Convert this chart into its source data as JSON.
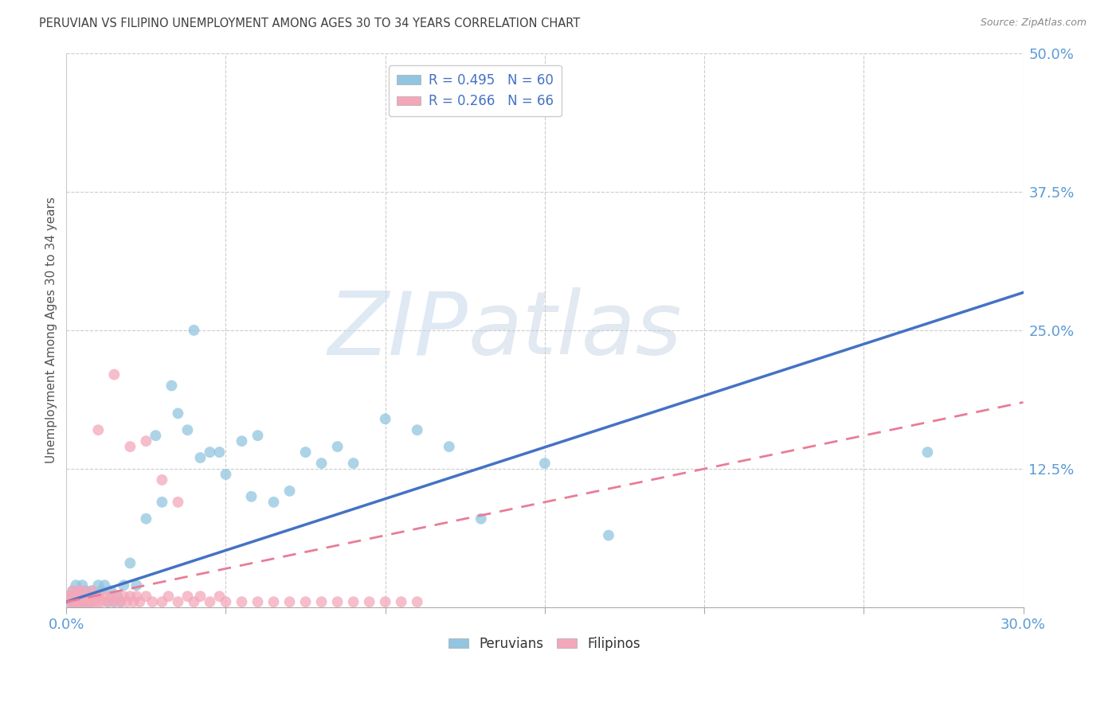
{
  "title": "PERUVIAN VS FILIPINO UNEMPLOYMENT AMONG AGES 30 TO 34 YEARS CORRELATION CHART",
  "source": "Source: ZipAtlas.com",
  "ylabel": "Unemployment Among Ages 30 to 34 years",
  "xlim": [
    0.0,
    0.3
  ],
  "ylim": [
    0.0,
    0.5
  ],
  "xticks": [
    0.0,
    0.05,
    0.1,
    0.15,
    0.2,
    0.25,
    0.3
  ],
  "xtick_labels": [
    "0.0%",
    "",
    "",
    "",
    "",
    "",
    "30.0%"
  ],
  "ytick_labels": [
    "",
    "12.5%",
    "25.0%",
    "37.5%",
    "50.0%"
  ],
  "yticks": [
    0.0,
    0.125,
    0.25,
    0.375,
    0.5
  ],
  "peruvian_color": "#92C5E0",
  "filipino_color": "#F4A7B9",
  "peruvian_line_color": "#4472C4",
  "filipino_line_color": "#E87D96",
  "peruvian_N": 60,
  "filipino_N": 66,
  "peruvian_R": 0.495,
  "filipino_R": 0.266,
  "legend_peruvian_label": "R = 0.495   N = 60",
  "legend_filipino_label": "R = 0.266   N = 66",
  "legend_peruvians": "Peruvians",
  "legend_filipinos": "Filipinos",
  "watermark_zip": "ZIP",
  "watermark_atlas": "atlas",
  "title_color": "#404040",
  "tick_label_color": "#5B9BD5",
  "legend_text_color": "#4472C4",
  "grid_color": "#CCCCCC",
  "peruvian_line_intercept": 0.005,
  "peruvian_line_slope": 0.93,
  "filipino_line_intercept": 0.005,
  "filipino_line_slope": 0.6,
  "peru_x": [
    0.001,
    0.001,
    0.002,
    0.002,
    0.002,
    0.003,
    0.003,
    0.003,
    0.004,
    0.004,
    0.005,
    0.005,
    0.005,
    0.006,
    0.006,
    0.007,
    0.007,
    0.008,
    0.008,
    0.009,
    0.01,
    0.01,
    0.011,
    0.012,
    0.013,
    0.014,
    0.015,
    0.016,
    0.017,
    0.018,
    0.02,
    0.022,
    0.025,
    0.028,
    0.03,
    0.033,
    0.035,
    0.038,
    0.04,
    0.042,
    0.045,
    0.048,
    0.05,
    0.055,
    0.058,
    0.06,
    0.065,
    0.07,
    0.075,
    0.08,
    0.085,
    0.09,
    0.1,
    0.11,
    0.12,
    0.13,
    0.15,
    0.17,
    0.27,
    0.135
  ],
  "peru_y": [
    0.01,
    0.005,
    0.015,
    0.005,
    0.01,
    0.01,
    0.005,
    0.02,
    0.01,
    0.005,
    0.02,
    0.01,
    0.005,
    0.015,
    0.005,
    0.01,
    0.005,
    0.015,
    0.005,
    0.01,
    0.02,
    0.01,
    0.015,
    0.02,
    0.005,
    0.015,
    0.005,
    0.01,
    0.005,
    0.02,
    0.04,
    0.02,
    0.08,
    0.155,
    0.095,
    0.2,
    0.175,
    0.16,
    0.25,
    0.135,
    0.14,
    0.14,
    0.12,
    0.15,
    0.1,
    0.155,
    0.095,
    0.105,
    0.14,
    0.13,
    0.145,
    0.13,
    0.17,
    0.16,
    0.145,
    0.08,
    0.13,
    0.065,
    0.14,
    0.47
  ],
  "fil_x": [
    0.001,
    0.001,
    0.002,
    0.002,
    0.002,
    0.003,
    0.003,
    0.003,
    0.004,
    0.004,
    0.004,
    0.005,
    0.005,
    0.005,
    0.006,
    0.006,
    0.007,
    0.007,
    0.008,
    0.008,
    0.009,
    0.009,
    0.01,
    0.01,
    0.011,
    0.012,
    0.013,
    0.014,
    0.015,
    0.016,
    0.017,
    0.018,
    0.019,
    0.02,
    0.021,
    0.022,
    0.023,
    0.025,
    0.027,
    0.03,
    0.032,
    0.035,
    0.038,
    0.04,
    0.042,
    0.045,
    0.048,
    0.05,
    0.055,
    0.06,
    0.065,
    0.07,
    0.075,
    0.08,
    0.085,
    0.09,
    0.095,
    0.1,
    0.105,
    0.11,
    0.01,
    0.015,
    0.02,
    0.025,
    0.03,
    0.035
  ],
  "fil_y": [
    0.005,
    0.01,
    0.005,
    0.01,
    0.015,
    0.005,
    0.01,
    0.005,
    0.01,
    0.005,
    0.015,
    0.005,
    0.01,
    0.015,
    0.005,
    0.01,
    0.005,
    0.01,
    0.005,
    0.015,
    0.005,
    0.01,
    0.005,
    0.01,
    0.005,
    0.01,
    0.005,
    0.01,
    0.005,
    0.01,
    0.005,
    0.01,
    0.005,
    0.01,
    0.005,
    0.01,
    0.005,
    0.01,
    0.005,
    0.005,
    0.01,
    0.005,
    0.01,
    0.005,
    0.01,
    0.005,
    0.01,
    0.005,
    0.005,
    0.005,
    0.005,
    0.005,
    0.005,
    0.005,
    0.005,
    0.005,
    0.005,
    0.005,
    0.005,
    0.005,
    0.16,
    0.21,
    0.145,
    0.15,
    0.115,
    0.095
  ]
}
